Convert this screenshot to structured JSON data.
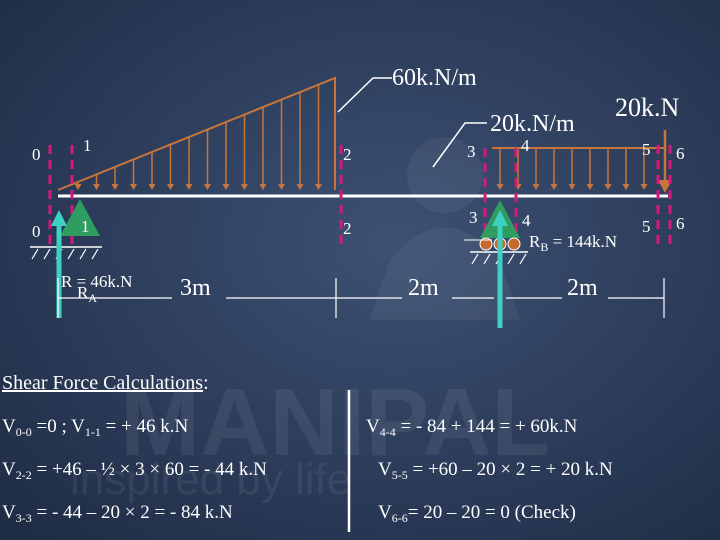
{
  "watermark": {
    "line1": "MANIPAL",
    "line2": "inspired by life"
  },
  "loads": {
    "udl_peak": "60k.N/m",
    "udl_uniform": "20k.N/m",
    "point_load": "20k.N"
  },
  "sections": {
    "top": [
      "0",
      "1",
      "2",
      "3",
      "4",
      "5",
      "6"
    ],
    "bottom": [
      "0",
      "1",
      "2",
      "3",
      "4",
      "5",
      "6"
    ]
  },
  "reactions": {
    "ra_value": "R = 46k.N",
    "ra_name": "R",
    "ra_sub": "A",
    "rb_name": "R",
    "rb_sub": "B",
    "rb_value": " = 144k.N"
  },
  "dimensions": [
    "3m",
    "2m",
    "2m"
  ],
  "heading": "Shear Force Calculations",
  "heading_colon": ":",
  "equations": {
    "v00": {
      "v": "V",
      "s1": "0-0",
      "t1": " =0 ; V",
      "s2": "1-1",
      "t2": " =  + 46 k.N"
    },
    "v22": {
      "v": "V",
      "s": "2-2",
      "t": " = +46 – ½ × 3 × 60 = - 44 k.N"
    },
    "v33": {
      "v": "V",
      "s": "3-3",
      "t": " = - 44 – 20 × 2 = - 84 k.N"
    },
    "v44": {
      "v": "V",
      "s": "4-4",
      "t": " = - 84 + 144 = + 60k.N"
    },
    "v55": {
      "v": "V",
      "s": "5-5",
      "t": " = +60 – 20 × 2 = + 20 k.N"
    },
    "v66": {
      "v": "V",
      "s": "6-6",
      "t": "= 20 – 20 = 0 (Check)"
    }
  },
  "colors": {
    "background": "#2c3e5c",
    "load": "#c8753c",
    "section_line": "#d6177e",
    "reaction_arrow": "#3fd0c4",
    "beam": "#ffffff"
  }
}
